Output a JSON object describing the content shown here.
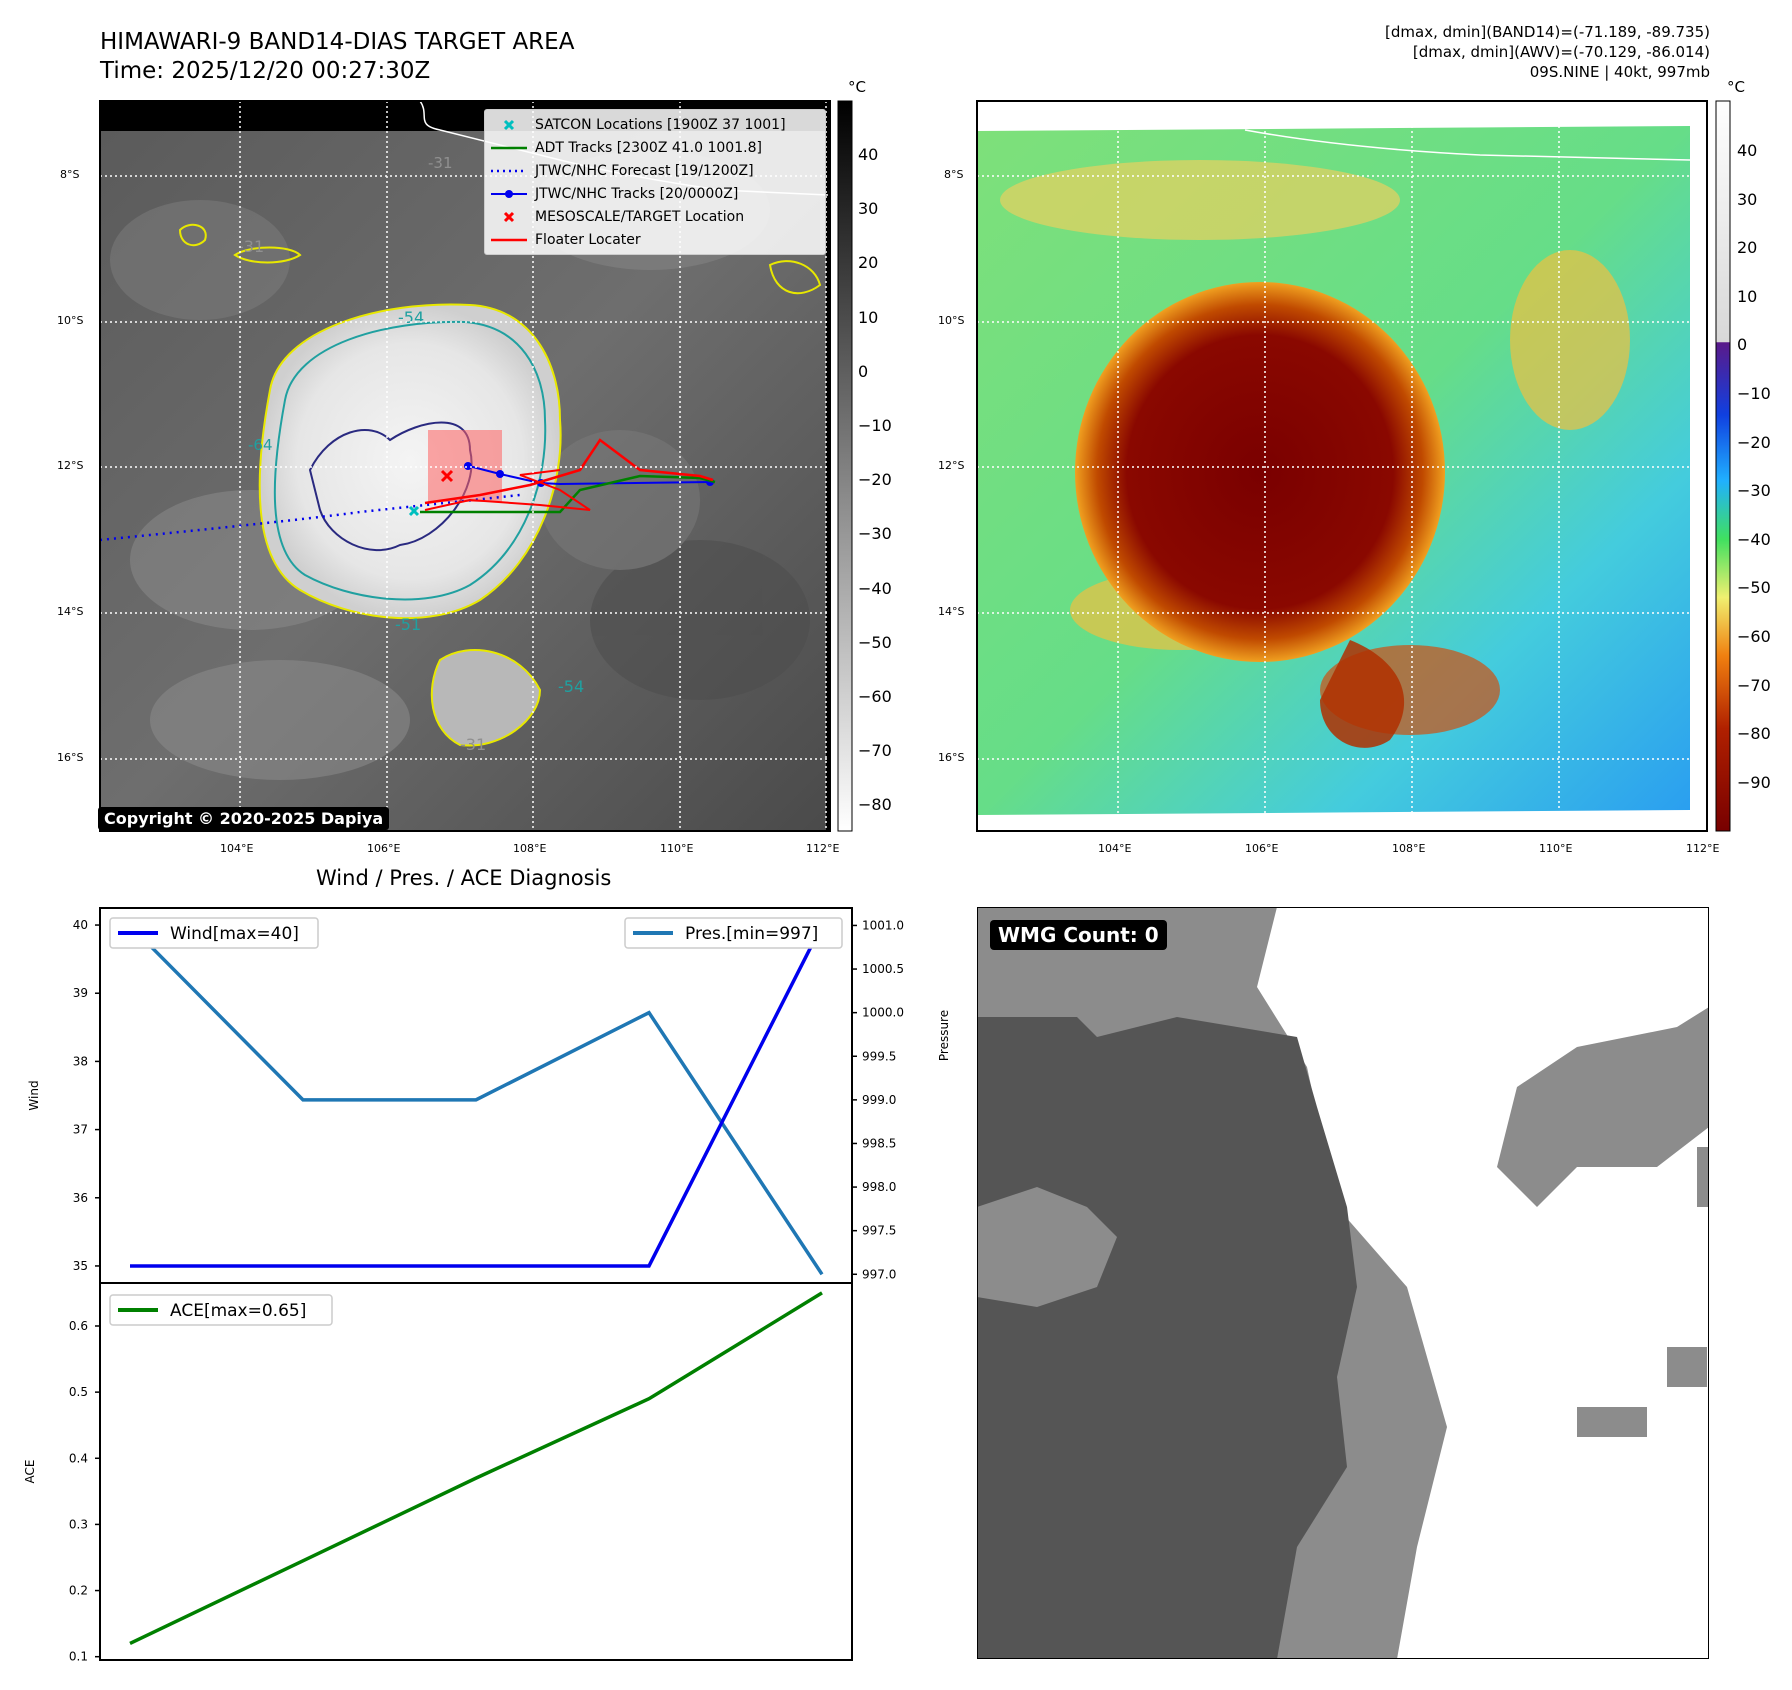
{
  "header": {
    "title_line1": "HIMAWARI-9 BAND14-DIAS TARGET AREA",
    "title_line2": "Time: 2025/12/20 00:27:30Z",
    "info_line1": "[dmax, dmin](BAND14)=(-71.189, -89.735)",
    "info_line2": "[dmax, dmin](AWV)=(-70.129, -86.014)",
    "info_line3": "09S.NINE | 40kt, 997mb",
    "copyright": "Copyright © 2020-2025 Dapiya"
  },
  "map": {
    "lat_labels": [
      "8°S",
      "10°S",
      "12°S",
      "14°S",
      "16°S"
    ],
    "lon_labels": [
      "104°E",
      "106°E",
      "108°E",
      "110°E",
      "112°E"
    ],
    "contour_labels": [
      "-31",
      "-54",
      "-51",
      "-54",
      "-31",
      "-64",
      "-31"
    ],
    "legend": [
      {
        "label": "SATCON Locations [1900Z 37 1001]",
        "color": "#00bfbf",
        "marker": "x"
      },
      {
        "label": "ADT Tracks [2300Z 41.0 1001.8]",
        "color": "#008000",
        "marker": "line"
      },
      {
        "label": "JTWC/NHC Forecast [19/1200Z]",
        "color": "#0000ff",
        "marker": "dotted"
      },
      {
        "label": "JTWC/NHC Tracks [20/0000Z]",
        "color": "#0000ff",
        "marker": "line-dot"
      },
      {
        "label": "MESOSCALE/TARGET Location",
        "color": "#ff0000",
        "marker": "x"
      },
      {
        "label": "Floater Locater",
        "color": "#ff0000",
        "marker": "line"
      }
    ]
  },
  "colorbar_gray": {
    "unit": "°C",
    "ticks": [
      "40",
      "30",
      "20",
      "10",
      "0",
      "−10",
      "−20",
      "−30",
      "−40",
      "−50",
      "−60",
      "−70",
      "−80"
    ]
  },
  "colorbar_color": {
    "unit": "°C",
    "ticks": [
      "40",
      "30",
      "20",
      "10",
      "0",
      "−10",
      "−20",
      "−30",
      "−40",
      "−50",
      "−60",
      "−70",
      "−80",
      "−90"
    ]
  },
  "wmg": {
    "label": "WMG Count: 0"
  },
  "chart_data": [
    {
      "type": "line",
      "title": "Wind / Pres. / ACE Diagnosis",
      "x": [
        0,
        1,
        2,
        3,
        4
      ],
      "ylabel": "Wind",
      "ylabel_right": "Pressure",
      "ylim": [
        34.75,
        40.25
      ],
      "ylim_right": [
        996.9,
        1001.2
      ],
      "yticks": [
        "40",
        "39",
        "38",
        "37",
        "36",
        "35"
      ],
      "yticks_right": [
        "1001.0",
        "1000.5",
        "1000.0",
        "999.5",
        "999.0",
        "998.5",
        "998.0",
        "997.5",
        "997.0"
      ],
      "series": [
        {
          "name": "Wind[max=40]",
          "axis": "left",
          "color": "#0000ee",
          "values": [
            35,
            35,
            35,
            35,
            40
          ]
        },
        {
          "name": "Pres.[min=997]",
          "axis": "right",
          "color": "#1f77b4",
          "values": [
            1001,
            999,
            999,
            1000,
            997
          ]
        }
      ]
    },
    {
      "type": "line",
      "x": [
        0,
        1,
        2,
        3,
        4
      ],
      "ylabel": "ACE",
      "ylim": [
        0.095,
        0.665
      ],
      "yticks": [
        "0.6",
        "0.5",
        "0.4",
        "0.3",
        "0.2",
        "0.1"
      ],
      "series": [
        {
          "name": "ACE[max=0.65]",
          "color": "#008000",
          "values": [
            0.12,
            0.245,
            0.37,
            0.49,
            0.65
          ]
        }
      ]
    }
  ]
}
